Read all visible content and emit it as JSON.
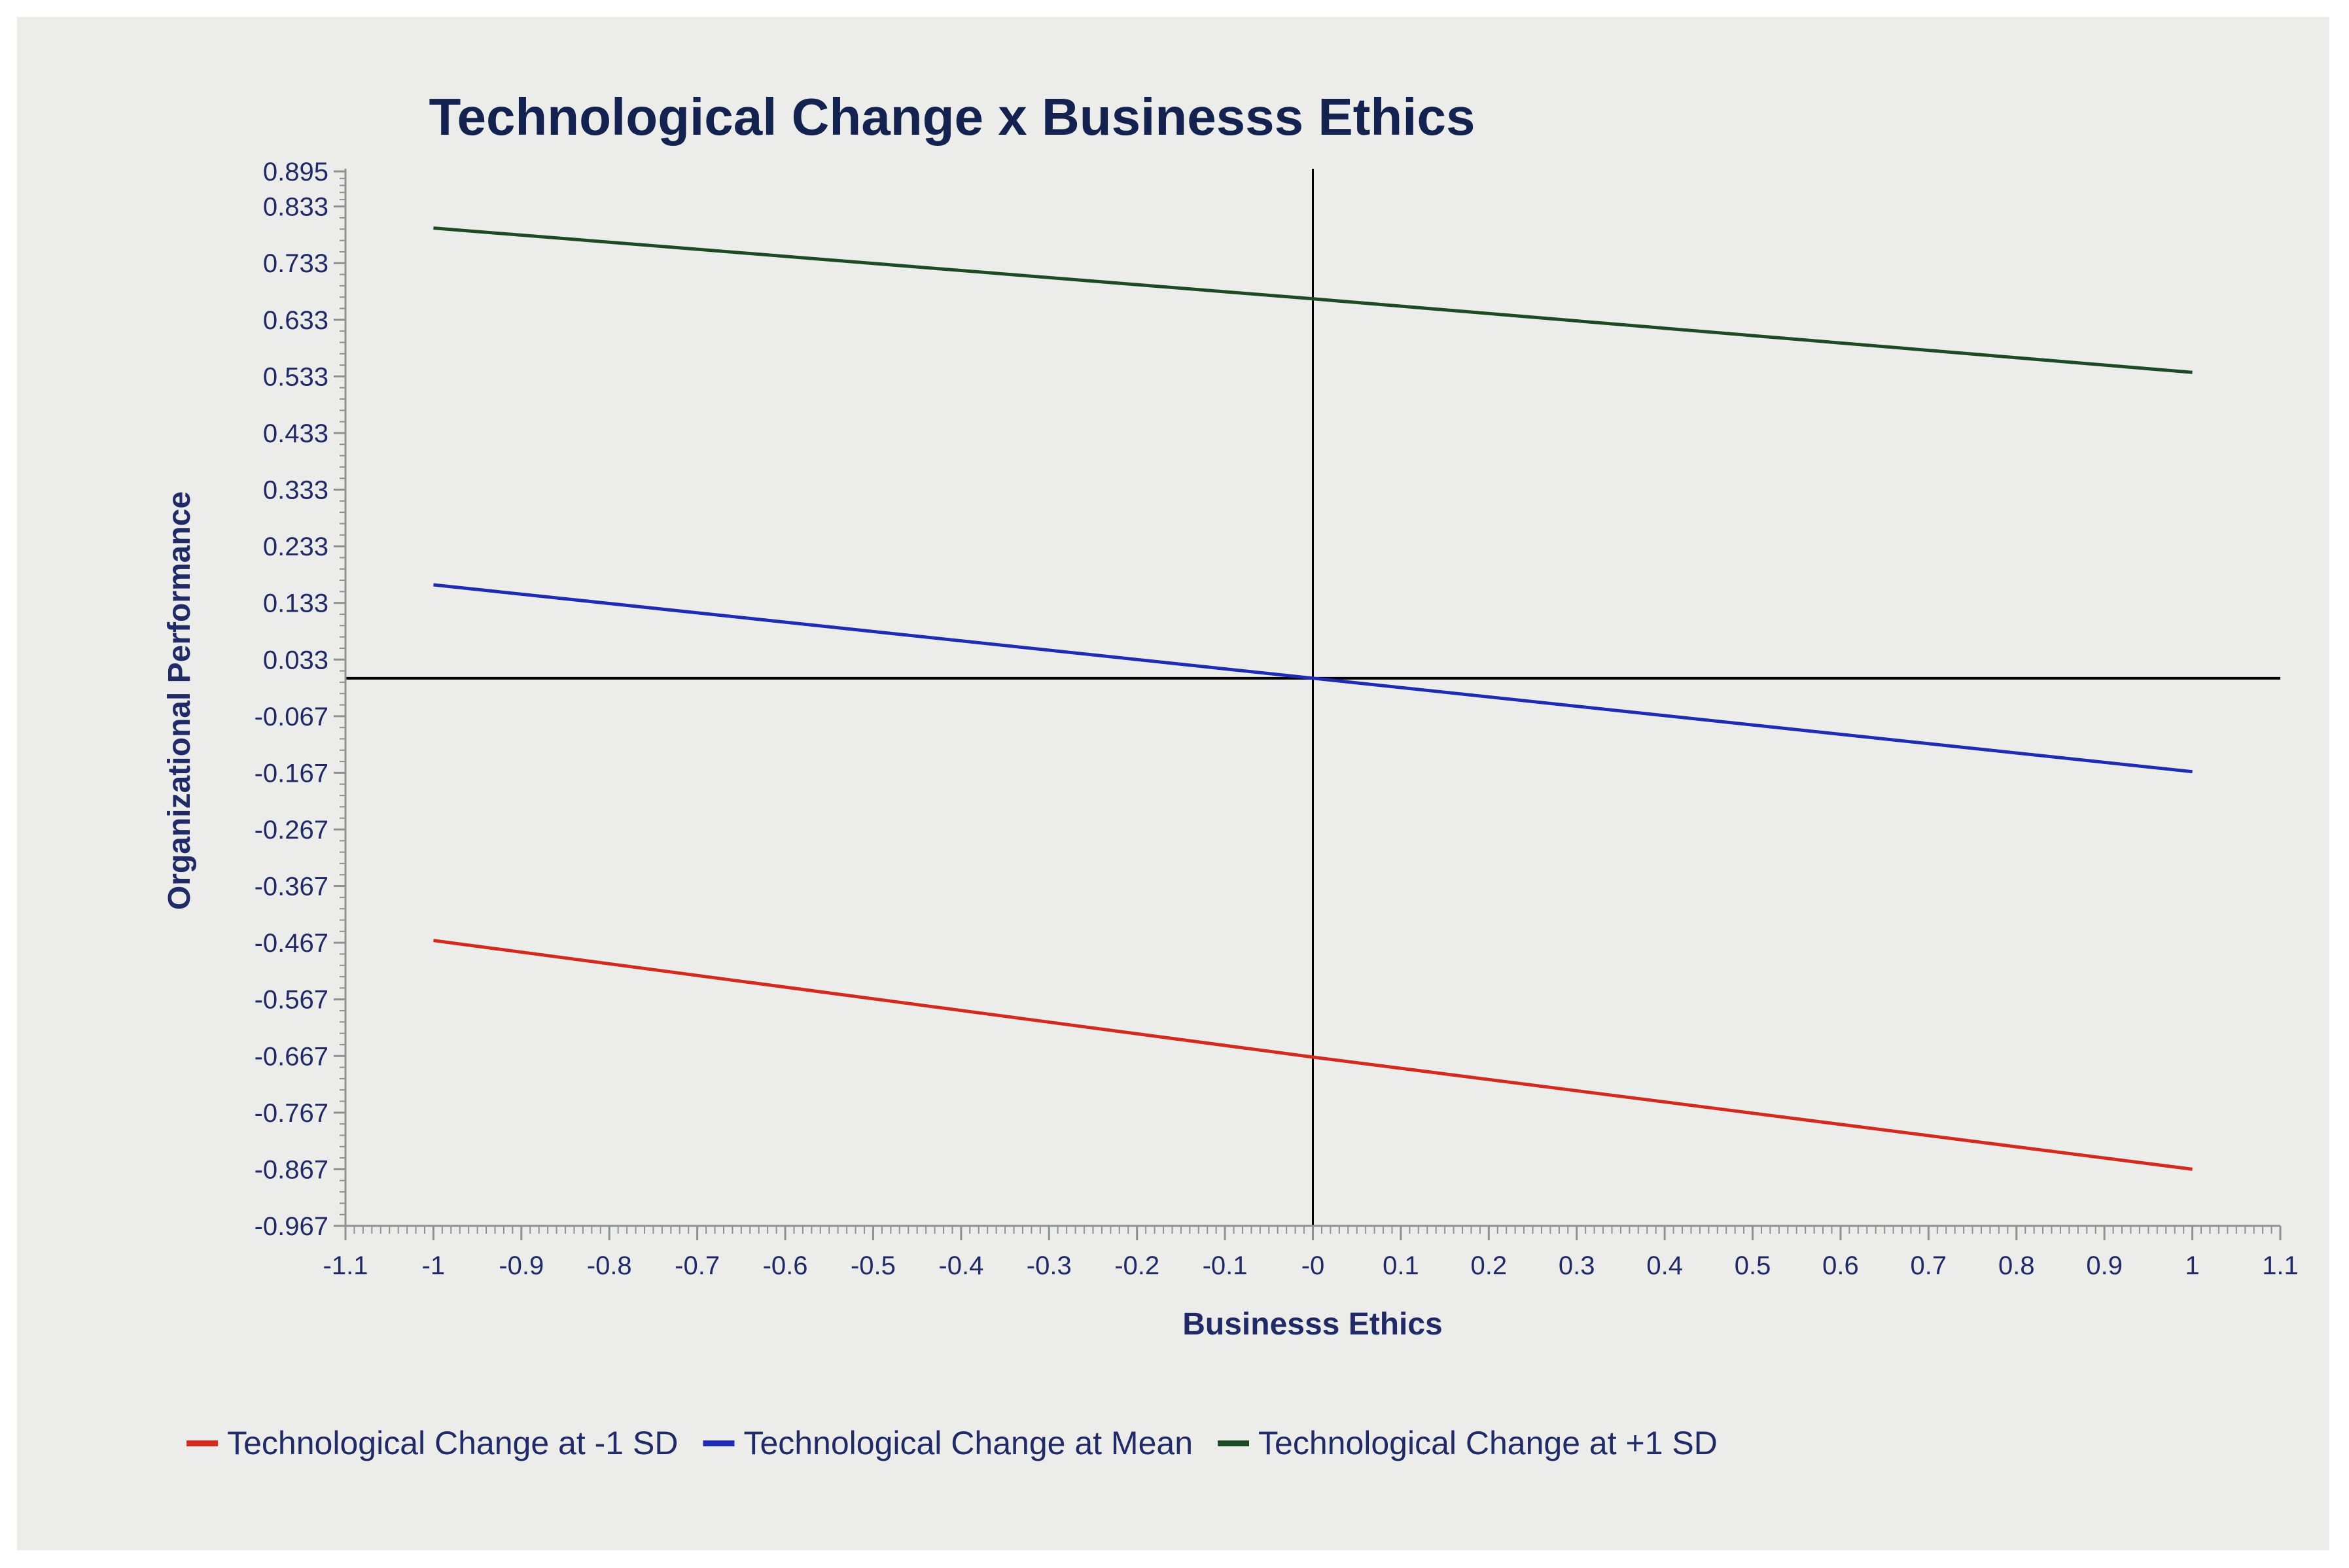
{
  "chart_data": {
    "type": "line",
    "title": "Technological Change x Businesss Ethics",
    "xlabel": "Businesss Ethics",
    "ylabel": "Organizational Performance",
    "xlim": [
      -1.1,
      1.1
    ],
    "ylim": [
      -0.967,
      0.895
    ],
    "x_ticks": [
      -1.1,
      -1,
      -0.9,
      -0.8,
      -0.7,
      -0.6,
      -0.5,
      -0.4,
      -0.3,
      -0.2,
      -0.1,
      0,
      0.1,
      0.2,
      0.3,
      0.4,
      0.5,
      0.6,
      0.7,
      0.8,
      0.9,
      1,
      1.1
    ],
    "x_tick_labels": [
      "-1.1",
      "-1",
      "-0.9",
      "-0.8",
      "-0.7",
      "-0.6",
      "-0.5",
      "-0.4",
      "-0.3",
      "-0.2",
      "-0.1",
      "-0",
      "0.1",
      "0.2",
      "0.3",
      "0.4",
      "0.5",
      "0.6",
      "0.7",
      "0.8",
      "0.9",
      "1",
      "1.1"
    ],
    "y_ticks": [
      0.895,
      0.833,
      0.733,
      0.633,
      0.533,
      0.433,
      0.333,
      0.233,
      0.133,
      0.033,
      -0.067,
      -0.167,
      -0.267,
      -0.367,
      -0.467,
      -0.567,
      -0.667,
      -0.767,
      -0.867,
      -0.967
    ],
    "y_tick_labels": [
      "0.895",
      "0.833",
      "0.733",
      "0.633",
      "0.533",
      "0.433",
      "0.333",
      "0.233",
      "0.133",
      "0.033",
      "-0.067",
      "-0.167",
      "-0.267",
      "-0.367",
      "-0.467",
      "-0.567",
      "-0.667",
      "-0.767",
      "-0.867",
      "-0.967"
    ],
    "reference_lines": {
      "x": 0,
      "y": 0
    },
    "legend_position": "bottom",
    "series": [
      {
        "name": "Technological Change at -1 SD",
        "color": "#d42a1e",
        "x": [
          -1,
          0,
          1
        ],
        "y": [
          -0.463,
          -0.669,
          -0.867
        ]
      },
      {
        "name": "Technological Change at Mean",
        "color": "#1f2ab5",
        "x": [
          -1,
          0,
          1
        ],
        "y": [
          0.165,
          0.0,
          -0.165
        ]
      },
      {
        "name": "Technological Change at +1 SD",
        "color": "#1c4a24",
        "x": [
          -1,
          0,
          1
        ],
        "y": [
          0.795,
          0.67,
          0.54
        ]
      }
    ]
  },
  "colors": {
    "background": "#ecedeb",
    "axis": "#000000",
    "text": "#1f2a66"
  }
}
